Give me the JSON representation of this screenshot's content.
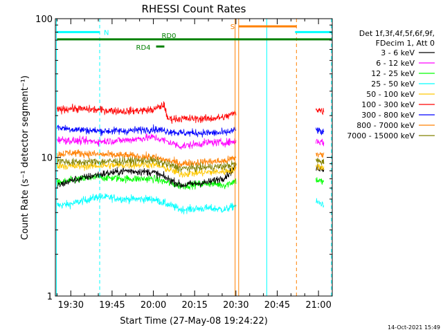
{
  "chart_data": {
    "type": "line",
    "title": "RHESSI Count Rates",
    "xlabel": "Start Time (27-May-08 19:24:22)",
    "ylabel": "Count Rate (s⁻¹ detector segment⁻¹)",
    "y_scale": "log",
    "ylim": [
      1,
      100
    ],
    "y_ticks": [
      {
        "value": 1,
        "label": "1"
      },
      {
        "value": 10,
        "label": "10"
      },
      {
        "value": 100,
        "label": "100"
      }
    ],
    "x_domain_min": [
      1164.4,
      1265
    ],
    "x_ticks": [
      {
        "value": 1170,
        "label": "19:30"
      },
      {
        "value": 1185,
        "label": "19:45"
      },
      {
        "value": 1200,
        "label": "20:00"
      },
      {
        "value": 1215,
        "label": "20:15"
      },
      {
        "value": 1230,
        "label": "20:30"
      },
      {
        "value": 1245,
        "label": "20:45"
      },
      {
        "value": 1260,
        "label": "21:00"
      }
    ],
    "legend_header": [
      "Det 1f,3f,4f,5f,6f,9f,",
      "FDecim 1, Att 0"
    ],
    "legend_position": "right",
    "series": [
      {
        "name": "3 - 6 keV",
        "color": "#000000",
        "x": [
          1165,
          1170,
          1180,
          1190,
          1200,
          1210,
          1220,
          1226,
          1230,
          1258,
          1260,
          1262
        ],
        "y": [
          6.2,
          6.8,
          7.5,
          8.0,
          7.8,
          6.3,
          6.6,
          7.2,
          8.5,
          8.2,
          8.4,
          8.3
        ]
      },
      {
        "name": "6 - 12 keV",
        "color": "#ff00ff",
        "x": [
          1165,
          1170,
          1180,
          1190,
          1200,
          1210,
          1220,
          1226,
          1230,
          1258,
          1260,
          1262
        ],
        "y": [
          13.5,
          13.2,
          13.0,
          13.3,
          14.0,
          12.0,
          12.8,
          12.8,
          13.0,
          13.5,
          13.0,
          12.8
        ]
      },
      {
        "name": "12 - 25 keV",
        "color": "#00ff00",
        "x": [
          1165,
          1170,
          1180,
          1190,
          1200,
          1210,
          1220,
          1226,
          1230,
          1258,
          1260,
          1262
        ],
        "y": [
          6.5,
          6.8,
          7.2,
          7.0,
          7.0,
          6.2,
          6.5,
          6.3,
          6.8,
          7.0,
          6.8,
          6.6
        ]
      },
      {
        "name": "25 - 50 keV",
        "color": "#00ffff",
        "x": [
          1165,
          1170,
          1180,
          1190,
          1200,
          1210,
          1220,
          1226,
          1230,
          1258,
          1260,
          1262
        ],
        "y": [
          4.5,
          4.6,
          5.2,
          5.0,
          5.0,
          4.2,
          4.3,
          4.2,
          4.5,
          4.8,
          4.7,
          4.6
        ]
      },
      {
        "name": "50 - 100 keV",
        "color": "#ffc800",
        "x": [
          1165,
          1170,
          1180,
          1190,
          1200,
          1210,
          1220,
          1226,
          1230,
          1258,
          1260,
          1262
        ],
        "y": [
          8.8,
          8.6,
          8.7,
          8.8,
          8.9,
          7.6,
          7.8,
          7.9,
          8.2,
          8.8,
          8.6,
          8.4
        ]
      },
      {
        "name": "100 - 300 keV",
        "color": "#ff0000",
        "x": [
          1165,
          1170,
          1180,
          1190,
          1200,
          1204,
          1205,
          1210,
          1220,
          1226,
          1230,
          1258,
          1260,
          1262
        ],
        "y": [
          22.0,
          22.5,
          22.0,
          21.5,
          22.0,
          24.0,
          19.0,
          19.0,
          19.0,
          19.5,
          21.0,
          23.0,
          22.0,
          21.5
        ]
      },
      {
        "name": "300 - 800 keV",
        "color": "#0000ff",
        "x": [
          1165,
          1170,
          1180,
          1190,
          1200,
          1210,
          1220,
          1226,
          1230,
          1258,
          1260,
          1262
        ],
        "y": [
          16.5,
          16.0,
          15.5,
          15.5,
          16.0,
          15.0,
          15.0,
          15.0,
          15.8,
          16.5,
          15.5,
          15.0
        ]
      },
      {
        "name": "800 - 7000 keV",
        "color": "#ff8000",
        "x": [
          1165,
          1170,
          1180,
          1190,
          1200,
          1210,
          1220,
          1226,
          1230,
          1258,
          1260,
          1262
        ],
        "y": [
          10.5,
          10.8,
          10.5,
          10.3,
          10.0,
          9.0,
          9.3,
          9.4,
          10.0,
          10.8,
          10.5,
          10.3
        ]
      },
      {
        "name": "7000 - 15000 keV",
        "color": "#808000",
        "x": [
          1165,
          1170,
          1180,
          1190,
          1200,
          1210,
          1220,
          1226,
          1230,
          1258,
          1260,
          1262
        ],
        "y": [
          9.5,
          9.2,
          9.3,
          9.4,
          9.5,
          8.3,
          8.5,
          8.6,
          9.0,
          9.6,
          9.4,
          9.2
        ]
      }
    ],
    "flag_bars": [
      {
        "label": "N",
        "color": "#00ffff",
        "y": 80,
        "x_ranges": [
          [
            1165,
            1180.5
          ]
        ]
      },
      {
        "label": "",
        "color": "#00ffff",
        "y": 80,
        "x_ranges": [
          [
            1251.5,
            1264.9
          ]
        ]
      },
      {
        "label": "S",
        "color": "#ff8000",
        "y": 88,
        "x_ranges": [
          [
            1231,
            1252
          ]
        ]
      },
      {
        "label": "RD0",
        "color": "#008000",
        "y": 71,
        "x_ranges": [
          [
            1165,
            1264.9
          ]
        ]
      },
      {
        "label": "RD4",
        "color": "#008000",
        "y": 63,
        "x_ranges": [
          [
            1201,
            1204
          ]
        ]
      }
    ],
    "vertical_markers": [
      {
        "x": 1164.8,
        "color": "#00ffff",
        "style": "solid"
      },
      {
        "x": 1180.5,
        "color": "#00ffff",
        "style": "dashed"
      },
      {
        "x": 1229.7,
        "color": "#ff8000",
        "style": "solid"
      },
      {
        "x": 1231.0,
        "color": "#ff8000",
        "style": "solid"
      },
      {
        "x": 1241.2,
        "color": "#00ffff",
        "style": "solid"
      },
      {
        "x": 1252.0,
        "color": "#ff8000",
        "style": "dashed"
      },
      {
        "x": 1264.7,
        "color": "#00ffff",
        "style": "dashed"
      }
    ],
    "data_gaps_min": [
      [
        1230.1,
        1259.0
      ]
    ],
    "grid": false,
    "footer_timestamp": "14-Oct-2021 15:49"
  }
}
